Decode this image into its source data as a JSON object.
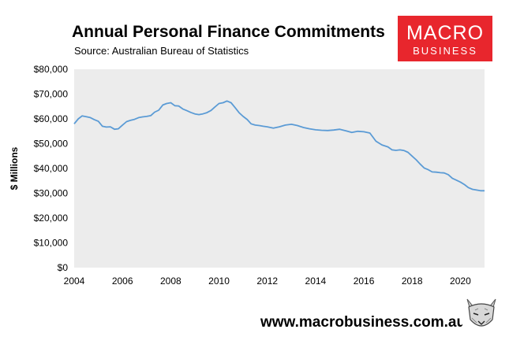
{
  "header": {
    "title": "Annual Personal Finance Commitments",
    "source": "Source: Australian Bureau of Statistics"
  },
  "logo": {
    "line1": "MACRO",
    "line2": "BUSINESS",
    "color": "#e8262d"
  },
  "footer": {
    "url": "www.macrobusiness.com.au"
  },
  "colors": {
    "plot_background": "#ececec",
    "line": "#5b9bd5"
  },
  "chart_data": {
    "type": "line",
    "title": "Annual Personal Finance Commitments",
    "subtitle": "Source: Australian Bureau of Statistics",
    "xlabel": "",
    "ylabel": "$ Millions",
    "xlim": [
      2004,
      2021
    ],
    "ylim": [
      0,
      80000
    ],
    "x_ticks": [
      2004,
      2006,
      2008,
      2010,
      2012,
      2014,
      2016,
      2018,
      2020
    ],
    "x_tick_labels": [
      "2004",
      "2006",
      "2008",
      "2010",
      "2012",
      "2014",
      "2016",
      "2018",
      "2020"
    ],
    "y_ticks": [
      0,
      10000,
      20000,
      30000,
      40000,
      50000,
      60000,
      70000,
      80000
    ],
    "y_tick_labels": [
      "$0",
      "$10,000",
      "$20,000",
      "$30,000",
      "$40,000",
      "$50,000",
      "$60,000",
      "$70,000",
      "$80,000"
    ],
    "grid": false,
    "legend": "none",
    "series": [
      {
        "x": [
          2004.0,
          2004.17,
          2004.33,
          2004.5,
          2004.67,
          2004.83,
          2005.0,
          2005.17,
          2005.33,
          2005.5,
          2005.67,
          2005.83,
          2006.0,
          2006.17,
          2006.33,
          2006.5,
          2006.67,
          2006.83,
          2007.0,
          2007.17,
          2007.33,
          2007.5,
          2007.67,
          2007.83,
          2008.0,
          2008.17,
          2008.33,
          2008.5,
          2008.67,
          2008.83,
          2009.0,
          2009.17,
          2009.33,
          2009.5,
          2009.67,
          2009.83,
          2010.0,
          2010.17,
          2010.33,
          2010.5,
          2010.67,
          2010.83,
          2011.0,
          2011.17,
          2011.33,
          2011.5,
          2011.67,
          2011.83,
          2012.0,
          2012.25,
          2012.5,
          2012.75,
          2013.0,
          2013.25,
          2013.5,
          2013.75,
          2014.0,
          2014.25,
          2014.5,
          2014.75,
          2015.0,
          2015.25,
          2015.5,
          2015.75,
          2016.0,
          2016.25,
          2016.5,
          2016.75,
          2017.0,
          2017.17,
          2017.33,
          2017.5,
          2017.67,
          2017.83,
          2018.0,
          2018.17,
          2018.33,
          2018.5,
          2018.67,
          2018.83,
          2019.0,
          2019.17,
          2019.33,
          2019.5,
          2019.67,
          2019.83,
          2020.0,
          2020.17,
          2020.33,
          2020.5,
          2020.67,
          2020.83,
          2021.0
        ],
        "y": [
          58000,
          60000,
          61200,
          60900,
          60500,
          59700,
          59000,
          57000,
          56700,
          56800,
          55800,
          56000,
          57500,
          58900,
          59400,
          59800,
          60500,
          60800,
          61000,
          61300,
          62700,
          63500,
          65600,
          66200,
          66500,
          65300,
          65200,
          64000,
          63300,
          62600,
          62000,
          61700,
          62000,
          62500,
          63400,
          64800,
          66200,
          66500,
          67200,
          66500,
          64500,
          62500,
          61000,
          59700,
          58000,
          57500,
          57300,
          57000,
          56800,
          56300,
          56800,
          57500,
          57800,
          57300,
          56500,
          56000,
          55600,
          55400,
          55300,
          55500,
          55800,
          55200,
          54500,
          55000,
          54800,
          54300,
          51000,
          49500,
          48700,
          47500,
          47300,
          47500,
          47200,
          46500,
          45000,
          43500,
          41800,
          40200,
          39500,
          38600,
          38500,
          38300,
          38200,
          37500,
          36000,
          35300,
          34500,
          33500,
          32300,
          31600,
          31300,
          31000,
          31000
        ]
      }
    ]
  }
}
